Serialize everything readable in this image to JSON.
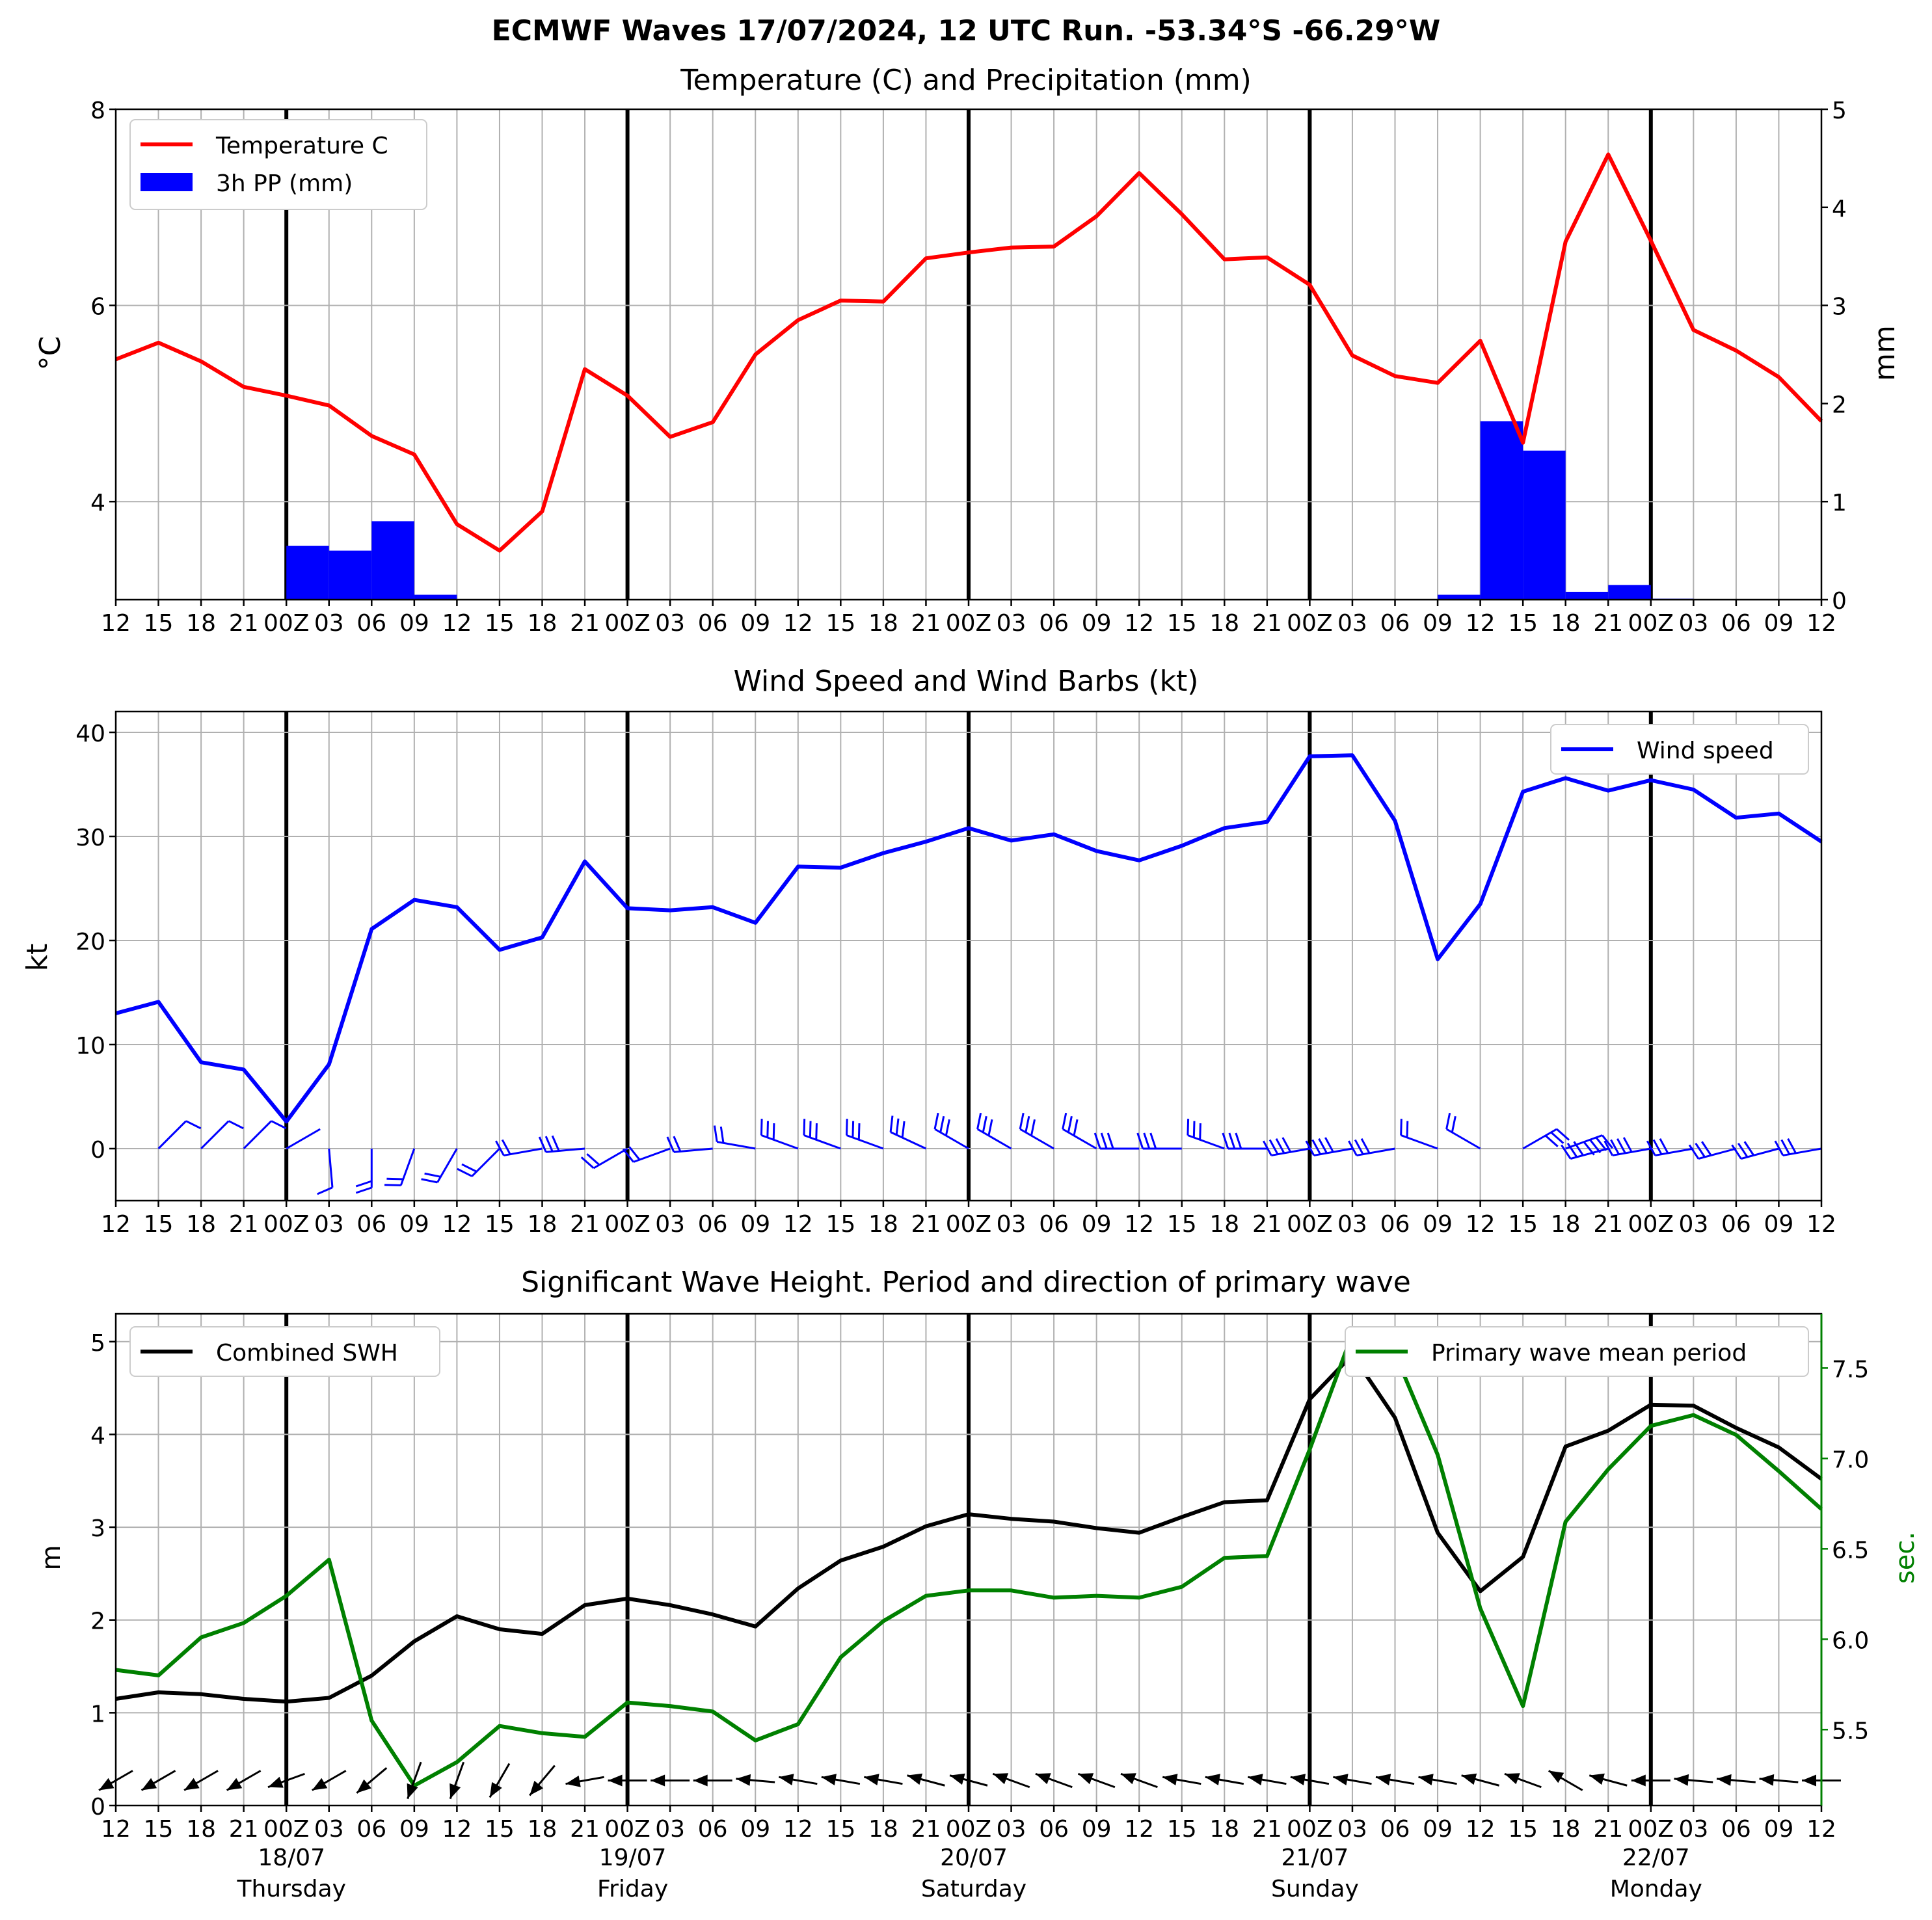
{
  "title": "ECMWF Waves 17/07/2024, 12 UTC Run. -53.34°S -66.29°W",
  "x_tick_labels": [
    "12",
    "15",
    "18",
    "21",
    "00Z",
    "03",
    "06",
    "09",
    "12",
    "15",
    "18",
    "21",
    "00Z",
    "03",
    "06",
    "09",
    "12",
    "15",
    "18",
    "21",
    "00Z",
    "03",
    "06",
    "09",
    "12",
    "15",
    "18",
    "21",
    "00Z",
    "03",
    "06",
    "09",
    "12",
    "15",
    "18",
    "21",
    "00Z",
    "03",
    "06",
    "09",
    "12"
  ],
  "day_labels": [
    {
      "date": "18/07",
      "day": "Thursday",
      "index": 4
    },
    {
      "date": "19/07",
      "day": "Friday",
      "index": 12
    },
    {
      "date": "20/07",
      "day": "Saturday",
      "index": 20
    },
    {
      "date": "21/07",
      "day": "Sunday",
      "index": 28
    },
    {
      "date": "22/07",
      "day": "Monday",
      "index": 36
    }
  ],
  "colors": {
    "temperature": "#ff0000",
    "precip": "#0000ff",
    "wind": "#0000ff",
    "swh": "#000000",
    "period": "#008000",
    "grid": "#b0b0b0"
  },
  "chart_data": [
    {
      "type": "line",
      "title": "Temperature (C) and Precipitation (mm)",
      "ylabel": "°C",
      "ylabel_right": "mm",
      "ylim": [
        3.0,
        8.0
      ],
      "ylim_right": [
        0,
        5
      ],
      "yticks": [
        4,
        6,
        8
      ],
      "yticks_right": [
        0,
        1,
        2,
        3,
        4,
        5
      ],
      "legend": "upper-left",
      "grid": true,
      "series": [
        {
          "name": "Temperature C",
          "kind": "line",
          "values": [
            5.45,
            5.62,
            5.43,
            5.17,
            5.08,
            4.98,
            4.67,
            4.48,
            3.77,
            3.5,
            3.9,
            5.35,
            5.08,
            4.66,
            4.81,
            5.5,
            5.85,
            6.05,
            6.04,
            6.48,
            6.54,
            6.59,
            6.6,
            6.91,
            7.35,
            6.93,
            6.47,
            6.49,
            6.21,
            5.49,
            5.28,
            5.21,
            5.64,
            4.6,
            6.65,
            7.54,
            6.66,
            5.75,
            5.54,
            5.27,
            4.82
          ]
        },
        {
          "name": "3h PP (mm)",
          "kind": "bar",
          "values": [
            0,
            0,
            0,
            0,
            0.55,
            0.5,
            0.8,
            0.05,
            0,
            0,
            0,
            0,
            0,
            0,
            0,
            0,
            0,
            0,
            0,
            0,
            0,
            0,
            0,
            0,
            0,
            0,
            0,
            0,
            0,
            0,
            0,
            0.05,
            1.82,
            1.52,
            0.08,
            0.15,
            0.01,
            0,
            0,
            0
          ]
        }
      ]
    },
    {
      "type": "line",
      "title": "Wind Speed and Wind Barbs (kt)",
      "ylabel": "kt",
      "ylim": [
        -5,
        42
      ],
      "yticks": [
        0,
        10,
        20,
        30,
        40
      ],
      "legend": "upper-right",
      "grid": true,
      "series": [
        {
          "name": "Wind speed",
          "values": [
            13.0,
            14.1,
            8.3,
            7.6,
            2.6,
            8.1,
            21.1,
            23.9,
            23.2,
            19.1,
            20.3,
            27.6,
            23.1,
            22.9,
            23.2,
            21.7,
            27.1,
            27.0,
            28.4,
            29.5,
            30.8,
            29.6,
            30.2,
            28.6,
            27.7,
            29.1,
            30.8,
            31.4,
            37.7,
            37.8,
            31.5,
            18.2,
            23.5,
            34.3,
            35.6,
            34.4,
            35.4,
            34.5,
            31.8,
            32.2,
            29.5
          ]
        }
      ],
      "wind_barb_direction_deg": [
        45,
        45,
        45,
        45,
        60,
        175,
        180,
        200,
        210,
        225,
        260,
        265,
        240,
        250,
        265,
        280,
        290,
        290,
        290,
        295,
        300,
        300,
        300,
        300,
        270,
        270,
        290,
        270,
        260,
        260,
        260,
        290,
        300,
        60,
        70,
        255,
        260,
        260,
        255,
        255,
        260
      ]
    },
    {
      "type": "line",
      "title": "Significant Wave Height. Period and direction of primary wave",
      "ylabel": "m",
      "ylabel_right": "sec.",
      "ylim": [
        0,
        5.3
      ],
      "ylim_right": [
        5.08,
        7.8
      ],
      "yticks": [
        0,
        1,
        2,
        3,
        4,
        5
      ],
      "yticks_right": [
        5.5,
        6.0,
        6.5,
        7.0,
        7.5
      ],
      "legend": "upper-left / upper-right",
      "grid": true,
      "series": [
        {
          "name": "Combined SWH",
          "axis": "left",
          "values": [
            1.15,
            1.22,
            1.2,
            1.15,
            1.12,
            1.16,
            1.4,
            1.77,
            2.04,
            1.9,
            1.85,
            2.16,
            2.23,
            2.16,
            2.06,
            1.93,
            2.34,
            2.64,
            2.79,
            3.01,
            3.14,
            3.09,
            3.06,
            2.99,
            2.94,
            3.11,
            3.27,
            3.29,
            4.38,
            4.86,
            4.18,
            2.94,
            2.31,
            2.68,
            3.87,
            4.04,
            4.32,
            4.31,
            4.07,
            3.86,
            3.52
          ]
        },
        {
          "name": "Primary wave mean period",
          "axis": "right",
          "values": [
            5.83,
            5.8,
            6.01,
            6.09,
            6.24,
            6.44,
            5.55,
            5.19,
            5.32,
            5.52,
            5.48,
            5.46,
            5.65,
            5.63,
            5.6,
            5.44,
            5.53,
            5.9,
            6.1,
            6.24,
            6.27,
            6.27,
            6.23,
            6.24,
            6.23,
            6.29,
            6.45,
            6.46,
            7.05,
            7.69,
            7.58,
            7.02,
            6.17,
            5.63,
            6.65,
            6.94,
            7.18,
            7.24,
            7.13,
            6.93,
            6.72
          ]
        }
      ],
      "wave_direction_deg": [
        240,
        240,
        240,
        240,
        250,
        240,
        230,
        200,
        200,
        210,
        220,
        260,
        270,
        270,
        270,
        275,
        280,
        280,
        280,
        285,
        285,
        290,
        290,
        290,
        290,
        280,
        280,
        280,
        280,
        280,
        280,
        280,
        285,
        290,
        300,
        285,
        270,
        275,
        275,
        275,
        270
      ]
    }
  ]
}
